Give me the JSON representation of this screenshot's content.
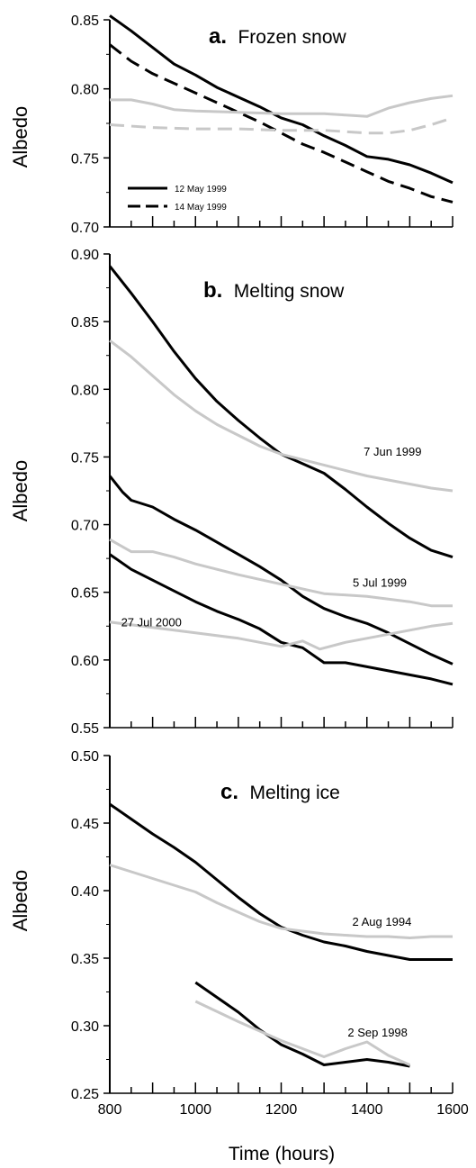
{
  "chart_data": [
    {
      "type": "line",
      "panel_letter": "a.",
      "title": "Frozen snow",
      "ylabel": "Albedo",
      "ylim": [
        0.7,
        0.85
      ],
      "yticks": [
        "0.70",
        "0.75",
        "0.80",
        "0.85"
      ],
      "xlim": [
        800,
        1600
      ],
      "legend": [
        {
          "label": "12 May 1999",
          "style": "solid"
        },
        {
          "label": "14 May 1999",
          "style": "dashed"
        }
      ],
      "series": [
        {
          "name": "12 May 1999",
          "role": "measured",
          "color": "#000000",
          "style": "solid",
          "x": [
            800,
            850,
            900,
            950,
            1000,
            1050,
            1100,
            1150,
            1200,
            1250,
            1300,
            1350,
            1400,
            1450,
            1500,
            1550,
            1600
          ],
          "y": [
            0.853,
            0.842,
            0.83,
            0.818,
            0.81,
            0.801,
            0.794,
            0.787,
            0.779,
            0.774,
            0.766,
            0.759,
            0.751,
            0.749,
            0.745,
            0.739,
            0.732
          ]
        },
        {
          "name": "14 May 1999",
          "role": "measured",
          "color": "#000000",
          "style": "dashed",
          "x": [
            800,
            850,
            900,
            950,
            1000,
            1050,
            1100,
            1150,
            1200,
            1250,
            1300,
            1350,
            1400,
            1450,
            1500,
            1550,
            1600
          ],
          "y": [
            0.832,
            0.82,
            0.811,
            0.804,
            0.797,
            0.79,
            0.783,
            0.776,
            0.768,
            0.76,
            0.754,
            0.747,
            0.74,
            0.733,
            0.728,
            0.722,
            0.718
          ]
        },
        {
          "role": "modelled",
          "color": "#c8c8c8",
          "style": "solid",
          "x": [
            800,
            850,
            900,
            950,
            1000,
            1100,
            1200,
            1300,
            1350,
            1400,
            1450,
            1500,
            1550,
            1600
          ],
          "y": [
            0.792,
            0.792,
            0.789,
            0.785,
            0.784,
            0.783,
            0.782,
            0.782,
            0.781,
            0.78,
            0.786,
            0.79,
            0.793,
            0.795
          ]
        },
        {
          "role": "modelled",
          "color": "#c8c8c8",
          "style": "dashed",
          "x": [
            800,
            900,
            1000,
            1100,
            1200,
            1300,
            1400,
            1450,
            1500,
            1550,
            1600
          ],
          "y": [
            0.774,
            0.772,
            0.771,
            0.771,
            0.77,
            0.77,
            0.768,
            0.768,
            0.77,
            0.774,
            0.779
          ]
        }
      ],
      "annotations": []
    },
    {
      "type": "line",
      "panel_letter": "b.",
      "title": "Melting snow",
      "ylabel": "Albedo",
      "ylim": [
        0.55,
        0.9
      ],
      "yticks": [
        "0.55",
        "0.60",
        "0.65",
        "0.70",
        "0.75",
        "0.80",
        "0.85",
        "0.90"
      ],
      "xlim": [
        800,
        1600
      ],
      "series": [
        {
          "role": "measured",
          "color": "#000000",
          "style": "solid",
          "x": [
            800,
            850,
            900,
            950,
            1000,
            1050,
            1100,
            1150,
            1200,
            1250,
            1300,
            1350,
            1400,
            1450,
            1500,
            1550,
            1600
          ],
          "y": [
            0.891,
            0.871,
            0.85,
            0.828,
            0.808,
            0.791,
            0.777,
            0.764,
            0.752,
            0.745,
            0.738,
            0.726,
            0.713,
            0.701,
            0.69,
            0.681,
            0.676
          ]
        },
        {
          "role": "modelled",
          "color": "#c8c8c8",
          "style": "solid",
          "x": [
            800,
            850,
            900,
            950,
            1000,
            1050,
            1100,
            1150,
            1200,
            1250,
            1300,
            1350,
            1400,
            1450,
            1500,
            1550,
            1600
          ],
          "y": [
            0.836,
            0.824,
            0.81,
            0.796,
            0.784,
            0.774,
            0.766,
            0.758,
            0.752,
            0.748,
            0.744,
            0.74,
            0.736,
            0.733,
            0.73,
            0.727,
            0.725
          ]
        },
        {
          "role": "measured",
          "color": "#000000",
          "style": "solid",
          "x": [
            800,
            830,
            850,
            900,
            950,
            1000,
            1050,
            1100,
            1150,
            1200,
            1250,
            1300,
            1350,
            1400,
            1450,
            1500,
            1550,
            1600
          ],
          "y": [
            0.736,
            0.724,
            0.718,
            0.713,
            0.704,
            0.696,
            0.687,
            0.678,
            0.669,
            0.659,
            0.647,
            0.638,
            0.632,
            0.627,
            0.62,
            0.612,
            0.604,
            0.597
          ]
        },
        {
          "role": "modelled",
          "color": "#c8c8c8",
          "style": "solid",
          "x": [
            800,
            850,
            900,
            950,
            1000,
            1100,
            1200,
            1300,
            1400,
            1500,
            1550,
            1600
          ],
          "y": [
            0.689,
            0.68,
            0.68,
            0.676,
            0.671,
            0.663,
            0.656,
            0.649,
            0.647,
            0.643,
            0.64,
            0.64
          ]
        },
        {
          "role": "measured",
          "color": "#000000",
          "style": "solid",
          "x": [
            800,
            850,
            900,
            950,
            1000,
            1050,
            1100,
            1150,
            1200,
            1250,
            1300,
            1350,
            1400,
            1450,
            1500,
            1550,
            1600
          ],
          "y": [
            0.678,
            0.667,
            0.659,
            0.651,
            0.643,
            0.636,
            0.63,
            0.623,
            0.613,
            0.609,
            0.598,
            0.598,
            0.595,
            0.592,
            0.589,
            0.586,
            0.582
          ]
        },
        {
          "role": "modelled",
          "color": "#c8c8c8",
          "style": "solid",
          "x": [
            800,
            900,
            1000,
            1100,
            1200,
            1250,
            1290,
            1350,
            1400,
            1450,
            1500,
            1550,
            1600
          ],
          "y": [
            0.628,
            0.624,
            0.62,
            0.616,
            0.61,
            0.614,
            0.608,
            0.613,
            0.616,
            0.619,
            0.622,
            0.625,
            0.627
          ]
        }
      ],
      "annotations": [
        {
          "text": "7 Jun 1999",
          "x": 1460,
          "y": 0.751
        },
        {
          "text": "5 Jul 1999",
          "x": 1430,
          "y": 0.654
        },
        {
          "text": "27 Jul 2000",
          "x": 897,
          "y": 0.625
        }
      ]
    },
    {
      "type": "line",
      "panel_letter": "c.",
      "title": "Melting ice",
      "ylabel": "Albedo",
      "xlabel": "Time (hours)",
      "ylim": [
        0.25,
        0.5
      ],
      "yticks": [
        "0.25",
        "0.30",
        "0.35",
        "0.40",
        "0.45",
        "0.50"
      ],
      "xlim": [
        800,
        1600
      ],
      "xticks": [
        "800",
        "1000",
        "1200",
        "1400",
        "1600"
      ],
      "series": [
        {
          "role": "measured",
          "color": "#000000",
          "style": "solid",
          "x": [
            800,
            850,
            900,
            950,
            1000,
            1050,
            1100,
            1150,
            1200,
            1250,
            1300,
            1350,
            1400,
            1450,
            1500,
            1550,
            1600
          ],
          "y": [
            0.464,
            0.453,
            0.442,
            0.432,
            0.421,
            0.408,
            0.395,
            0.383,
            0.373,
            0.367,
            0.362,
            0.359,
            0.355,
            0.352,
            0.349,
            0.349,
            0.349
          ]
        },
        {
          "role": "modelled",
          "color": "#c8c8c8",
          "style": "solid",
          "x": [
            800,
            850,
            900,
            950,
            1000,
            1050,
            1100,
            1150,
            1200,
            1250,
            1300,
            1350,
            1400,
            1450,
            1500,
            1550,
            1600
          ],
          "y": [
            0.419,
            0.414,
            0.409,
            0.404,
            0.399,
            0.391,
            0.384,
            0.377,
            0.372,
            0.37,
            0.368,
            0.367,
            0.366,
            0.366,
            0.365,
            0.366,
            0.366
          ]
        },
        {
          "role": "measured",
          "color": "#000000",
          "style": "solid",
          "x": [
            1000,
            1050,
            1100,
            1150,
            1200,
            1250,
            1300,
            1350,
            1400,
            1450,
            1500
          ],
          "y": [
            0.332,
            0.321,
            0.31,
            0.297,
            0.286,
            0.279,
            0.271,
            0.273,
            0.275,
            0.273,
            0.27
          ]
        },
        {
          "role": "modelled",
          "color": "#c8c8c8",
          "style": "solid",
          "x": [
            1000,
            1100,
            1200,
            1250,
            1300,
            1350,
            1400,
            1450,
            1500
          ],
          "y": [
            0.318,
            0.303,
            0.289,
            0.283,
            0.277,
            0.283,
            0.288,
            0.278,
            0.271
          ]
        }
      ],
      "annotations": [
        {
          "text": "2 Aug 1994",
          "x": 1435,
          "y": 0.374
        },
        {
          "text": "2 Sep 1998",
          "x": 1425,
          "y": 0.292
        }
      ]
    }
  ]
}
